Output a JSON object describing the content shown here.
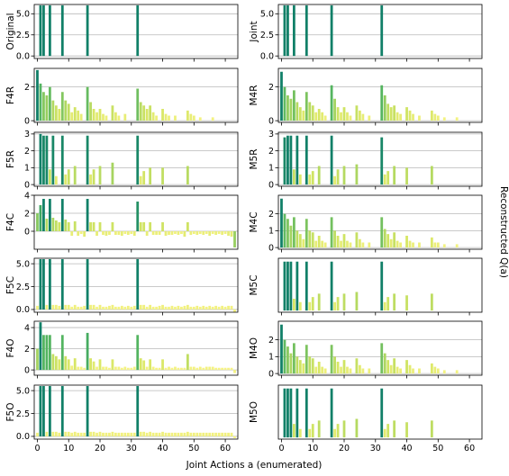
{
  "figure": {
    "xlabel": "Joint Actions a (enumerated)",
    "ylabel_right": "Reconstructed Q(a)",
    "x_ticks": [
      "0",
      "10",
      "20",
      "30",
      "40",
      "50",
      "60"
    ]
  },
  "chart_data": [
    {
      "type": "bar",
      "panel": "left-1",
      "ylabel": "Original",
      "xlim": [
        -1,
        64
      ],
      "ylim": [
        -0.3,
        6.1
      ],
      "yticks": [
        0.0,
        2.5,
        5.0
      ],
      "ytick_labels": [
        "0.0",
        "2.5",
        "5.0"
      ],
      "x": [
        1,
        2,
        4,
        8,
        16,
        32
      ],
      "values": [
        6,
        6,
        6,
        6,
        6,
        6
      ]
    },
    {
      "type": "bar",
      "panel": "right-1",
      "ylabel": "Joint",
      "xlim": [
        -1,
        64
      ],
      "ylim": [
        -0.3,
        6.1
      ],
      "yticks": [
        0.0,
        2.5,
        5.0
      ],
      "ytick_labels": [
        "0.0",
        "2.5",
        "5.0"
      ],
      "x": [
        1,
        2,
        4,
        8,
        16,
        32
      ],
      "values": [
        6,
        6,
        6,
        6,
        6,
        6
      ]
    },
    {
      "type": "bar",
      "panel": "left-2",
      "ylabel": "F4R",
      "xlim": [
        -1,
        64
      ],
      "ylim": [
        -0.1,
        3.1
      ],
      "yticks": [
        0,
        2
      ],
      "ytick_labels": [
        "0",
        "2"
      ],
      "x": [
        0,
        1,
        2,
        3,
        4,
        5,
        6,
        7,
        8,
        9,
        10,
        11,
        12,
        13,
        14,
        16,
        17,
        18,
        19,
        20,
        21,
        22,
        24,
        25,
        26,
        28,
        32,
        33,
        34,
        35,
        36,
        37,
        38,
        40,
        41,
        42,
        44,
        48,
        49,
        50,
        52,
        56
      ],
      "values": [
        3.0,
        2.2,
        1.7,
        1.5,
        2.0,
        1.2,
        0.9,
        0.7,
        1.7,
        1.2,
        1.0,
        0.5,
        0.8,
        0.6,
        0.4,
        2.0,
        1.1,
        0.7,
        0.5,
        0.7,
        0.4,
        0.3,
        0.9,
        0.5,
        0.3,
        0.4,
        1.9,
        1.1,
        0.9,
        0.7,
        0.9,
        0.5,
        0.3,
        0.7,
        0.4,
        0.3,
        0.3,
        0.6,
        0.4,
        0.3,
        0.2,
        0.2
      ]
    },
    {
      "type": "bar",
      "panel": "right-2",
      "ylabel": "M4R",
      "xlim": [
        -1,
        64
      ],
      "ylim": [
        -0.1,
        3.1
      ],
      "yticks": [
        0,
        2
      ],
      "ytick_labels": [
        "0",
        "2"
      ],
      "x": [
        0,
        1,
        2,
        3,
        4,
        5,
        6,
        7,
        8,
        9,
        10,
        11,
        12,
        13,
        14,
        16,
        17,
        18,
        19,
        20,
        21,
        22,
        24,
        25,
        26,
        28,
        32,
        33,
        34,
        35,
        36,
        37,
        38,
        40,
        41,
        42,
        44,
        48,
        49,
        50,
        52,
        56
      ],
      "values": [
        2.9,
        2.0,
        1.5,
        1.3,
        1.8,
        1.1,
        0.8,
        0.6,
        1.7,
        1.1,
        0.9,
        0.5,
        0.7,
        0.5,
        0.3,
        2.1,
        1.3,
        0.8,
        0.5,
        0.8,
        0.5,
        0.3,
        0.9,
        0.6,
        0.4,
        0.3,
        2.1,
        1.5,
        1.0,
        0.8,
        0.9,
        0.5,
        0.4,
        0.8,
        0.6,
        0.4,
        0.3,
        0.6,
        0.4,
        0.3,
        0.2,
        0.2
      ]
    },
    {
      "type": "bar",
      "panel": "left-3",
      "ylabel": "F5R",
      "xlim": [
        -1,
        64
      ],
      "ylim": [
        -0.1,
        3.1
      ],
      "yticks": [
        0,
        1,
        2,
        3
      ],
      "ytick_labels": [
        "0",
        "1",
        "2",
        "3"
      ],
      "x": [
        1,
        2,
        3,
        4,
        5,
        6,
        8,
        9,
        10,
        12,
        16,
        17,
        18,
        20,
        24,
        32,
        33,
        34,
        36,
        40,
        48
      ],
      "values": [
        3.0,
        2.9,
        2.9,
        0.9,
        2.9,
        0.5,
        2.9,
        0.6,
        0.9,
        1.1,
        2.9,
        0.6,
        0.9,
        1.1,
        1.3,
        2.9,
        0.5,
        0.8,
        1.0,
        1.0,
        1.1
      ]
    },
    {
      "type": "bar",
      "panel": "right-3",
      "ylabel": "M5R",
      "xlim": [
        -1,
        64
      ],
      "ylim": [
        -0.1,
        3.1
      ],
      "yticks": [
        0,
        1,
        2,
        3
      ],
      "ytick_labels": [
        "0",
        "1",
        "2",
        "3"
      ],
      "x": [
        1,
        2,
        3,
        4,
        5,
        6,
        8,
        9,
        10,
        12,
        16,
        17,
        18,
        20,
        24,
        32,
        33,
        34,
        36,
        40,
        48
      ],
      "values": [
        2.8,
        2.9,
        2.9,
        0.9,
        2.9,
        0.6,
        2.9,
        0.6,
        0.8,
        1.1,
        2.9,
        0.5,
        0.9,
        1.1,
        1.2,
        2.8,
        0.6,
        0.8,
        1.1,
        1.0,
        1.1
      ]
    },
    {
      "type": "bar",
      "panel": "left-4",
      "ylabel": "F4C",
      "xlim": [
        -1,
        64
      ],
      "ylim": [
        -2.0,
        4.0
      ],
      "yticks": [
        0,
        2,
        4
      ],
      "ytick_labels": [
        "0",
        "2",
        "4"
      ],
      "x": [
        0,
        1,
        2,
        3,
        4,
        5,
        6,
        7,
        8,
        9,
        10,
        11,
        12,
        13,
        14,
        15,
        16,
        17,
        18,
        19,
        20,
        21,
        22,
        23,
        24,
        25,
        26,
        27,
        28,
        29,
        30,
        31,
        32,
        33,
        34,
        35,
        36,
        37,
        38,
        39,
        40,
        41,
        42,
        43,
        44,
        45,
        46,
        47,
        48,
        49,
        50,
        51,
        52,
        53,
        54,
        55,
        56,
        57,
        58,
        59,
        60,
        61,
        62,
        63
      ],
      "values": [
        2.0,
        2.9,
        3.6,
        1.4,
        3.6,
        1.5,
        1.2,
        1.0,
        3.6,
        1.3,
        1.0,
        -0.5,
        1.1,
        -0.5,
        -0.3,
        -0.6,
        3.6,
        1.0,
        1.0,
        -0.5,
        1.0,
        -0.4,
        -0.5,
        -0.4,
        1.0,
        -0.4,
        -0.4,
        -0.5,
        -0.3,
        -0.4,
        -0.3,
        -0.5,
        3.3,
        1.0,
        1.0,
        -0.5,
        1.0,
        -0.4,
        -0.4,
        -0.4,
        1.0,
        -0.5,
        -0.4,
        -0.4,
        -0.3,
        -0.4,
        -0.3,
        -0.6,
        1.0,
        -0.4,
        -0.3,
        -0.4,
        -0.3,
        -0.4,
        -0.3,
        -0.5,
        -0.3,
        -0.4,
        -0.3,
        -0.4,
        -0.3,
        -0.5,
        -0.6,
        -1.8
      ]
    },
    {
      "type": "bar",
      "panel": "right-4",
      "ylabel": "M4C",
      "xlim": [
        -1,
        64
      ],
      "ylim": [
        -0.1,
        3.1
      ],
      "yticks": [
        0,
        1,
        2
      ],
      "ytick_labels": [
        "0",
        "1",
        "2"
      ],
      "x": [
        0,
        1,
        2,
        3,
        4,
        5,
        6,
        7,
        8,
        9,
        10,
        11,
        12,
        13,
        14,
        16,
        17,
        18,
        19,
        20,
        21,
        22,
        24,
        25,
        26,
        28,
        32,
        33,
        34,
        35,
        36,
        37,
        38,
        40,
        41,
        42,
        44,
        48,
        49,
        50,
        52,
        56
      ],
      "values": [
        2.9,
        2.0,
        1.7,
        1.3,
        1.8,
        1.0,
        0.8,
        0.5,
        1.7,
        1.0,
        0.9,
        0.4,
        0.7,
        0.4,
        0.3,
        1.8,
        1.0,
        0.7,
        0.4,
        0.8,
        0.4,
        0.3,
        0.9,
        0.5,
        0.3,
        0.3,
        1.8,
        1.1,
        0.8,
        0.5,
        0.9,
        0.4,
        0.3,
        0.7,
        0.4,
        0.3,
        0.3,
        0.6,
        0.3,
        0.3,
        0.2,
        0.2
      ]
    },
    {
      "type": "bar",
      "panel": "left-5",
      "ylabel": "F5C",
      "xlim": [
        -1,
        64
      ],
      "ylim": [
        -0.3,
        5.6
      ],
      "yticks": [
        0.0,
        2.5,
        5.0
      ],
      "ytick_labels": [
        "0.0",
        "2.5",
        "5.0"
      ],
      "x": [
        0,
        1,
        2,
        3,
        4,
        5,
        6,
        7,
        8,
        9,
        10,
        11,
        12,
        13,
        14,
        15,
        16,
        17,
        18,
        19,
        20,
        21,
        22,
        23,
        24,
        25,
        26,
        27,
        28,
        29,
        30,
        31,
        32,
        33,
        34,
        35,
        36,
        37,
        38,
        39,
        40,
        41,
        42,
        43,
        44,
        45,
        46,
        47,
        48,
        49,
        50,
        51,
        52,
        53,
        54,
        55,
        56,
        57,
        58,
        59,
        60,
        61,
        62,
        63
      ],
      "values": [
        0.4,
        5.5,
        5.5,
        0.5,
        5.5,
        0.5,
        0.5,
        0.4,
        5.5,
        0.5,
        0.5,
        0.3,
        0.5,
        0.3,
        0.3,
        0.4,
        5.5,
        0.5,
        0.5,
        0.3,
        0.5,
        0.3,
        0.3,
        0.4,
        0.5,
        0.3,
        0.3,
        0.4,
        0.3,
        0.4,
        0.3,
        0.4,
        5.5,
        0.5,
        0.5,
        0.3,
        0.5,
        0.3,
        0.3,
        0.4,
        0.5,
        0.3,
        0.3,
        0.4,
        0.3,
        0.4,
        0.3,
        0.4,
        0.5,
        0.3,
        0.3,
        0.4,
        0.3,
        0.4,
        0.3,
        0.4,
        0.3,
        0.4,
        0.3,
        0.4,
        0.3,
        0.4,
        0.4,
        -0.3
      ]
    },
    {
      "type": "bar",
      "panel": "right-5",
      "ylabel": "M5C",
      "xlim": [
        -1,
        64
      ],
      "ylim": [
        -0.1,
        3.1
      ],
      "yticks": [],
      "ytick_labels": [],
      "x": [
        1,
        2,
        3,
        4,
        5,
        6,
        8,
        9,
        10,
        12,
        16,
        17,
        18,
        20,
        24,
        32,
        33,
        34,
        36,
        40,
        48
      ],
      "values": [
        2.9,
        2.9,
        2.9,
        0.7,
        2.9,
        0.5,
        2.9,
        0.5,
        0.8,
        1.0,
        2.9,
        0.5,
        0.8,
        1.0,
        1.1,
        2.9,
        0.5,
        0.8,
        1.0,
        0.9,
        1.0
      ]
    },
    {
      "type": "bar",
      "panel": "left-6",
      "ylabel": "F4O",
      "xlim": [
        -1,
        64
      ],
      "ylim": [
        -0.5,
        4.6
      ],
      "yticks": [
        0,
        2,
        4
      ],
      "ytick_labels": [
        "0",
        "2",
        "4"
      ],
      "x": [
        0,
        1,
        2,
        3,
        4,
        5,
        6,
        7,
        8,
        9,
        10,
        11,
        12,
        13,
        14,
        15,
        16,
        17,
        18,
        19,
        20,
        21,
        22,
        23,
        24,
        25,
        26,
        27,
        28,
        29,
        30,
        31,
        32,
        33,
        34,
        35,
        36,
        37,
        38,
        39,
        40,
        41,
        42,
        43,
        44,
        45,
        46,
        47,
        48,
        49,
        50,
        51,
        52,
        53,
        54,
        55,
        56,
        57,
        58,
        59,
        60,
        61,
        62,
        63
      ],
      "values": [
        2.0,
        4.5,
        3.3,
        3.3,
        3.3,
        1.5,
        1.3,
        1.0,
        3.3,
        1.3,
        1.0,
        0.4,
        1.1,
        0.3,
        0.3,
        0.2,
        3.5,
        1.1,
        0.8,
        0.3,
        1.0,
        0.3,
        0.3,
        0.2,
        1.0,
        0.3,
        0.3,
        0.2,
        0.3,
        0.2,
        0.2,
        0.3,
        3.3,
        1.1,
        0.9,
        0.3,
        1.0,
        0.3,
        0.2,
        0.2,
        1.0,
        0.2,
        0.3,
        0.2,
        0.3,
        0.2,
        0.2,
        0.2,
        1.5,
        0.3,
        0.3,
        0.2,
        0.3,
        0.2,
        0.3,
        0.3,
        0.3,
        0.2,
        0.2,
        0.2,
        0.2,
        0.2,
        0.2,
        -0.3
      ]
    },
    {
      "type": "bar",
      "panel": "right-6",
      "ylabel": "M4O",
      "xlim": [
        -1,
        64
      ],
      "ylim": [
        -0.1,
        3.1
      ],
      "yticks": [
        0,
        1,
        2
      ],
      "ytick_labels": [
        "0",
        "1",
        "2"
      ],
      "x": [
        0,
        1,
        2,
        3,
        4,
        5,
        6,
        7,
        8,
        9,
        10,
        11,
        12,
        13,
        14,
        16,
        17,
        18,
        19,
        20,
        21,
        22,
        24,
        25,
        26,
        28,
        32,
        33,
        34,
        35,
        36,
        37,
        38,
        40,
        41,
        42,
        44,
        48,
        49,
        50,
        52,
        56
      ],
      "values": [
        2.9,
        2.0,
        1.6,
        1.2,
        1.8,
        1.0,
        0.8,
        0.6,
        1.7,
        1.0,
        0.9,
        0.4,
        0.7,
        0.4,
        0.3,
        1.7,
        1.0,
        0.7,
        0.4,
        0.8,
        0.4,
        0.3,
        0.9,
        0.5,
        0.3,
        0.3,
        1.8,
        1.2,
        0.8,
        0.5,
        0.9,
        0.4,
        0.3,
        0.8,
        0.5,
        0.3,
        0.3,
        0.6,
        0.4,
        0.3,
        0.2,
        0.2
      ]
    },
    {
      "type": "bar",
      "panel": "left-7",
      "ylabel": "F5O",
      "xlim": [
        -1,
        64
      ],
      "ylim": [
        -0.3,
        5.6
      ],
      "yticks": [
        0.0,
        2.5,
        5.0
      ],
      "ytick_labels": [
        "0.0",
        "2.5",
        "5.0"
      ],
      "x": [
        0,
        1,
        2,
        3,
        4,
        5,
        6,
        7,
        8,
        9,
        10,
        11,
        12,
        13,
        14,
        15,
        16,
        17,
        18,
        19,
        20,
        21,
        22,
        23,
        24,
        25,
        26,
        27,
        28,
        29,
        30,
        31,
        32,
        33,
        34,
        35,
        36,
        37,
        38,
        39,
        40,
        41,
        42,
        43,
        44,
        45,
        46,
        47,
        48,
        49,
        50,
        51,
        52,
        53,
        54,
        55,
        56,
        57,
        58,
        59,
        60,
        61,
        62,
        63
      ],
      "values": [
        0.4,
        5.5,
        5.5,
        0.5,
        5.5,
        0.5,
        0.5,
        0.4,
        5.5,
        0.5,
        0.5,
        0.4,
        0.5,
        0.4,
        0.4,
        0.4,
        5.5,
        0.5,
        0.5,
        0.4,
        0.5,
        0.4,
        0.4,
        0.4,
        0.5,
        0.4,
        0.4,
        0.4,
        0.4,
        0.4,
        0.4,
        0.4,
        5.5,
        0.5,
        0.5,
        0.4,
        0.5,
        0.4,
        0.4,
        0.4,
        0.5,
        0.4,
        0.4,
        0.4,
        0.4,
        0.4,
        0.4,
        0.4,
        0.5,
        0.4,
        0.4,
        0.4,
        0.4,
        0.4,
        0.4,
        0.4,
        0.4,
        0.4,
        0.4,
        0.4,
        0.4,
        0.4,
        0.4,
        -0.2
      ]
    },
    {
      "type": "bar",
      "panel": "right-7",
      "ylabel": "M5O",
      "xlim": [
        -1,
        64
      ],
      "ylim": [
        -0.1,
        3.1
      ],
      "yticks": [],
      "ytick_labels": [],
      "x": [
        1,
        2,
        3,
        4,
        5,
        6,
        8,
        9,
        10,
        12,
        16,
        17,
        18,
        20,
        24,
        32,
        33,
        34,
        36,
        40,
        48
      ],
      "values": [
        2.9,
        2.9,
        2.9,
        0.8,
        2.9,
        0.5,
        2.9,
        0.5,
        0.8,
        1.0,
        2.9,
        0.5,
        0.8,
        1.0,
        1.1,
        2.9,
        0.5,
        0.8,
        1.0,
        0.9,
        1.0
      ]
    }
  ]
}
